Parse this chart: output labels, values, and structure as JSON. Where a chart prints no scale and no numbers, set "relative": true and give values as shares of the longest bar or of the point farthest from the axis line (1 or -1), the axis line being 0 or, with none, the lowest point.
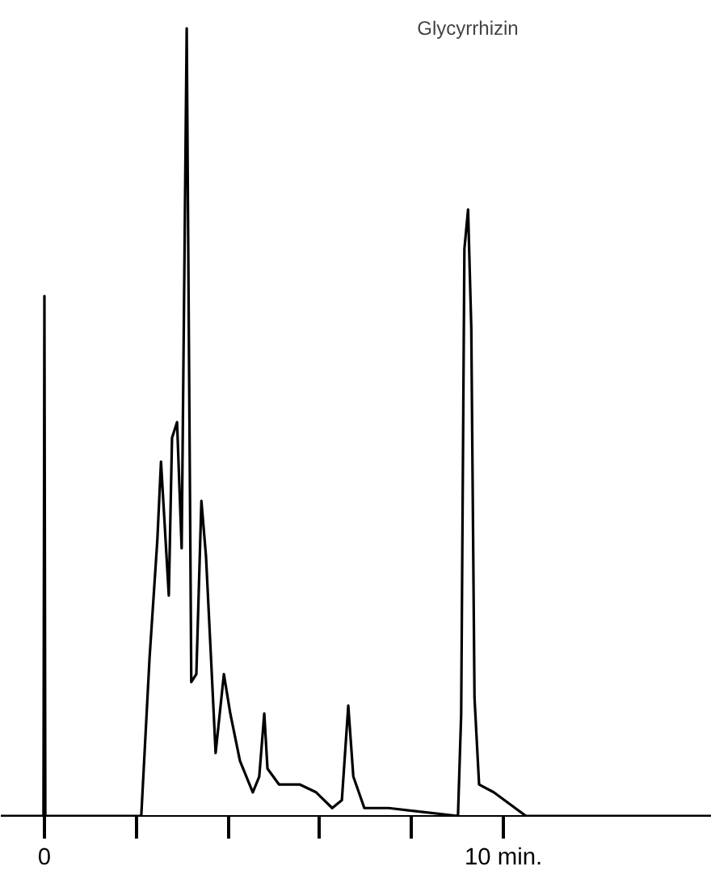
{
  "chart_data": {
    "type": "line",
    "relative": true,
    "x": [
      -0.95,
      -0.02,
      0,
      0.02,
      0.04,
      2.11,
      2.29,
      2.46,
      2.54,
      2.61,
      2.71,
      2.78,
      2.89,
      2.99,
      3.1,
      3.2,
      3.31,
      3.42,
      3.52,
      3.63,
      3.73,
      3.91,
      4.05,
      4.26,
      4.54,
      4.68,
      4.79,
      4.86,
      5.11,
      5.56,
      5.92,
      6.27,
      6.48,
      6.62,
      6.73,
      6.97,
      7.5,
      9.01,
      9.08,
      9.15,
      9.23,
      9.3,
      9.37,
      9.47,
      9.79,
      10.49,
      14.54
    ],
    "series": [
      {
        "color": "#000000",
        "values": [
          0,
          0,
          0.66,
          0,
          0,
          0,
          0.2,
          0.35,
          0.45,
          0.38,
          0.28,
          0.48,
          0.5,
          0.34,
          1.0,
          0.17,
          0.18,
          0.4,
          0.33,
          0.2,
          0.08,
          0.18,
          0.13,
          0.07,
          0.03,
          0.05,
          0.13,
          0.06,
          0.04,
          0.04,
          0.03,
          0.01,
          0.02,
          0.14,
          0.05,
          0.01,
          0.01,
          0,
          0.13,
          0.72,
          0.77,
          0.62,
          0.15,
          0.04,
          0.03,
          0,
          0
        ]
      }
    ],
    "xlim": [
      -0.95,
      14.54
    ],
    "xticks": [
      0,
      {
        "value": 2,
        "label": null
      },
      {
        "value": 4,
        "label": null
      },
      {
        "value": 6,
        "label": null
      },
      {
        "value": 8,
        "label": null
      },
      {
        "value": 10,
        "label": "10 min."
      }
    ],
    "annotations": [
      "Glycyrrhizin"
    ],
    "grid": false,
    "marker": "none",
    "line_style": "solid"
  }
}
